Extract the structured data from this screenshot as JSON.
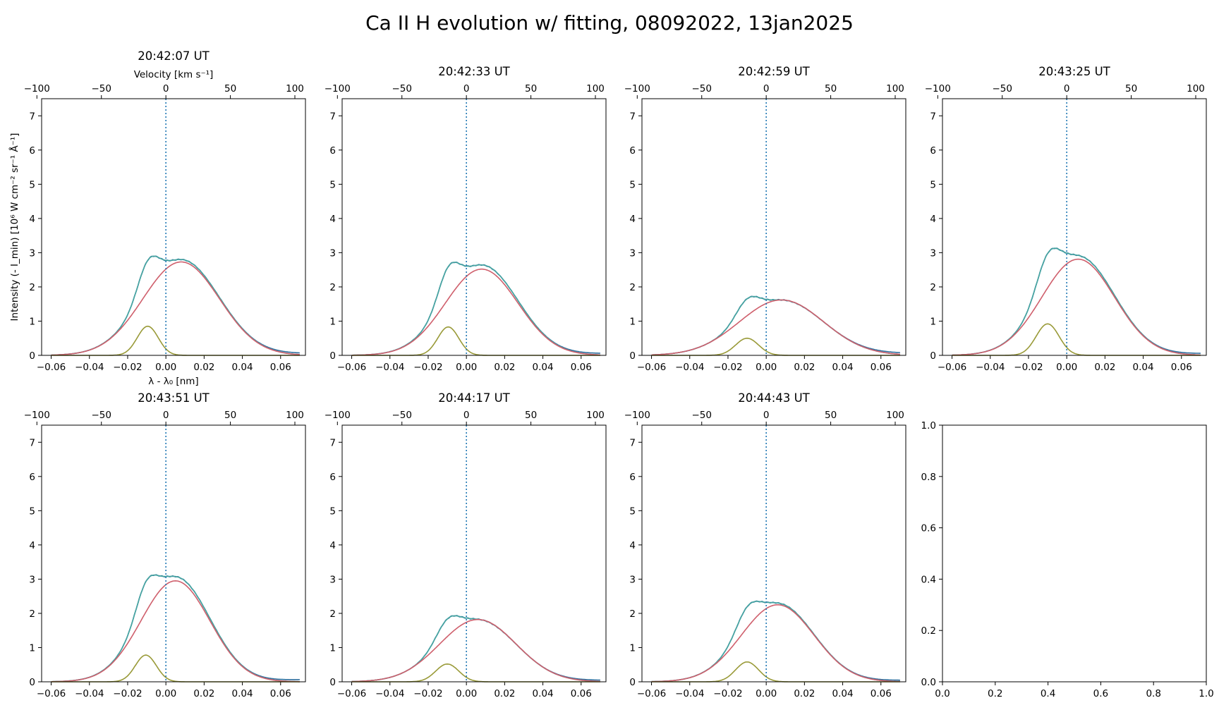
{
  "figure": {
    "title": "Ca II H evolution w/ fitting, 08092022, 13jan2025"
  },
  "axis_labels": {
    "x": "λ - λ₀ [nm]",
    "y": "Intensity (- I_min) [10⁶ W cm⁻² sr⁻¹ Å⁻¹]",
    "top": "Velocity [km s⁻¹]"
  },
  "colors": {
    "observed": "#2e6f9e",
    "total_fit": "#46a5a0",
    "component_1": "#cf5f6c",
    "component_2": "#999a38",
    "line_center": "#1f77b4"
  },
  "chart_data": [
    {
      "type": "line",
      "title": "20:42:07 UT",
      "xlim": [
        -0.065,
        0.073
      ],
      "ylim": [
        0,
        7.5
      ],
      "xticks": [
        -0.06,
        -0.04,
        -0.02,
        0.0,
        0.02,
        0.04,
        0.06
      ],
      "yticks": [
        0,
        1,
        2,
        3,
        4,
        5,
        6,
        7
      ],
      "top_axis": {
        "label": "Velocity [km s⁻¹]",
        "ticks": [
          -100,
          -50,
          0,
          50,
          100
        ]
      },
      "line_center": 0.0,
      "components": [
        {
          "peak": 2.73,
          "center": 0.008,
          "sigma": 0.02
        },
        {
          "peak": 0.85,
          "center": -0.0095,
          "sigma": 0.0055
        }
      ],
      "observed_peak": 2.9,
      "observed_tail": 0.05
    },
    {
      "type": "line",
      "title": "20:42:33 UT",
      "xlim": [
        -0.065,
        0.073
      ],
      "ylim": [
        0,
        7.5
      ],
      "xticks": [
        -0.06,
        -0.04,
        -0.02,
        0.0,
        0.02,
        0.04,
        0.06
      ],
      "yticks": [
        0,
        1,
        2,
        3,
        4,
        5,
        6,
        7
      ],
      "top_axis": {
        "label": "",
        "ticks": [
          -100,
          -50,
          0,
          50,
          100
        ]
      },
      "line_center": 0.0,
      "components": [
        {
          "peak": 2.52,
          "center": 0.008,
          "sigma": 0.019
        },
        {
          "peak": 0.83,
          "center": -0.0095,
          "sigma": 0.0055
        }
      ],
      "observed_peak": 2.72,
      "observed_tail": 0.05
    },
    {
      "type": "line",
      "title": "20:42:59 UT",
      "xlim": [
        -0.065,
        0.073
      ],
      "ylim": [
        0,
        7.5
      ],
      "xticks": [
        -0.06,
        -0.04,
        -0.02,
        0.0,
        0.02,
        0.04,
        0.06
      ],
      "yticks": [
        0,
        1,
        2,
        3,
        4,
        5,
        6,
        7
      ],
      "top_axis": {
        "label": "",
        "ticks": [
          -100,
          -50,
          0,
          50,
          100
        ]
      },
      "line_center": 0.0,
      "components": [
        {
          "peak": 1.62,
          "center": 0.008,
          "sigma": 0.022
        },
        {
          "peak": 0.5,
          "center": -0.01,
          "sigma": 0.006
        }
      ],
      "observed_peak": 1.72,
      "observed_tail": 0.05
    },
    {
      "type": "line",
      "title": "20:43:25 UT",
      "xlim": [
        -0.065,
        0.073
      ],
      "ylim": [
        0,
        7.5
      ],
      "xticks": [
        -0.06,
        -0.04,
        -0.02,
        0.0,
        0.02,
        0.04,
        0.06
      ],
      "yticks": [
        0,
        1,
        2,
        3,
        4,
        5,
        6,
        7
      ],
      "top_axis": {
        "label": "",
        "ticks": [
          -100,
          -50,
          0,
          50,
          100
        ]
      },
      "line_center": 0.0,
      "components": [
        {
          "peak": 2.81,
          "center": 0.006,
          "sigma": 0.019
        },
        {
          "peak": 0.92,
          "center": -0.01,
          "sigma": 0.006
        }
      ],
      "observed_peak": 3.13,
      "observed_tail": 0.05
    },
    {
      "type": "line",
      "title": "20:43:51 UT",
      "xlim": [
        -0.065,
        0.073
      ],
      "ylim": [
        0,
        7.5
      ],
      "xticks": [
        -0.06,
        -0.04,
        -0.02,
        0.0,
        0.02,
        0.04,
        0.06
      ],
      "yticks": [
        0,
        1,
        2,
        3,
        4,
        5,
        6,
        7
      ],
      "top_axis": {
        "label": "",
        "ticks": [
          -100,
          -50,
          0,
          50,
          100
        ]
      },
      "line_center": 0.0,
      "components": [
        {
          "peak": 2.95,
          "center": 0.005,
          "sigma": 0.018
        },
        {
          "peak": 0.78,
          "center": -0.0105,
          "sigma": 0.0055
        }
      ],
      "observed_peak": 3.12,
      "observed_tail": 0.06
    },
    {
      "type": "line",
      "title": "20:44:17 UT",
      "xlim": [
        -0.065,
        0.073
      ],
      "ylim": [
        0,
        7.5
      ],
      "xticks": [
        -0.06,
        -0.04,
        -0.02,
        0.0,
        0.02,
        0.04,
        0.06
      ],
      "yticks": [
        0,
        1,
        2,
        3,
        4,
        5,
        6,
        7
      ],
      "top_axis": {
        "label": "",
        "ticks": [
          -100,
          -50,
          0,
          50,
          100
        ]
      },
      "line_center": 0.0,
      "components": [
        {
          "peak": 1.82,
          "center": 0.006,
          "sigma": 0.02
        },
        {
          "peak": 0.52,
          "center": -0.01,
          "sigma": 0.006
        }
      ],
      "observed_peak": 1.93,
      "observed_tail": 0.04
    },
    {
      "type": "line",
      "title": "20:44:43 UT",
      "xlim": [
        -0.065,
        0.073
      ],
      "ylim": [
        0,
        7.5
      ],
      "xticks": [
        -0.06,
        -0.04,
        -0.02,
        0.0,
        0.02,
        0.04,
        0.06
      ],
      "yticks": [
        0,
        1,
        2,
        3,
        4,
        5,
        6,
        7
      ],
      "top_axis": {
        "label": "",
        "ticks": [
          -100,
          -50,
          0,
          50,
          100
        ]
      },
      "line_center": 0.0,
      "components": [
        {
          "peak": 2.25,
          "center": 0.006,
          "sigma": 0.019
        },
        {
          "peak": 0.58,
          "center": -0.01,
          "sigma": 0.006
        }
      ],
      "observed_peak": 2.35,
      "observed_tail": 0.04
    },
    {
      "type": "line",
      "title": "",
      "xlim": [
        0,
        1
      ],
      "ylim": [
        0,
        1
      ],
      "xticks": [
        0.0,
        0.2,
        0.4,
        0.6,
        0.8,
        1.0
      ],
      "yticks": [
        0.0,
        0.2,
        0.4,
        0.6,
        0.8,
        1.0
      ],
      "empty": true
    }
  ]
}
